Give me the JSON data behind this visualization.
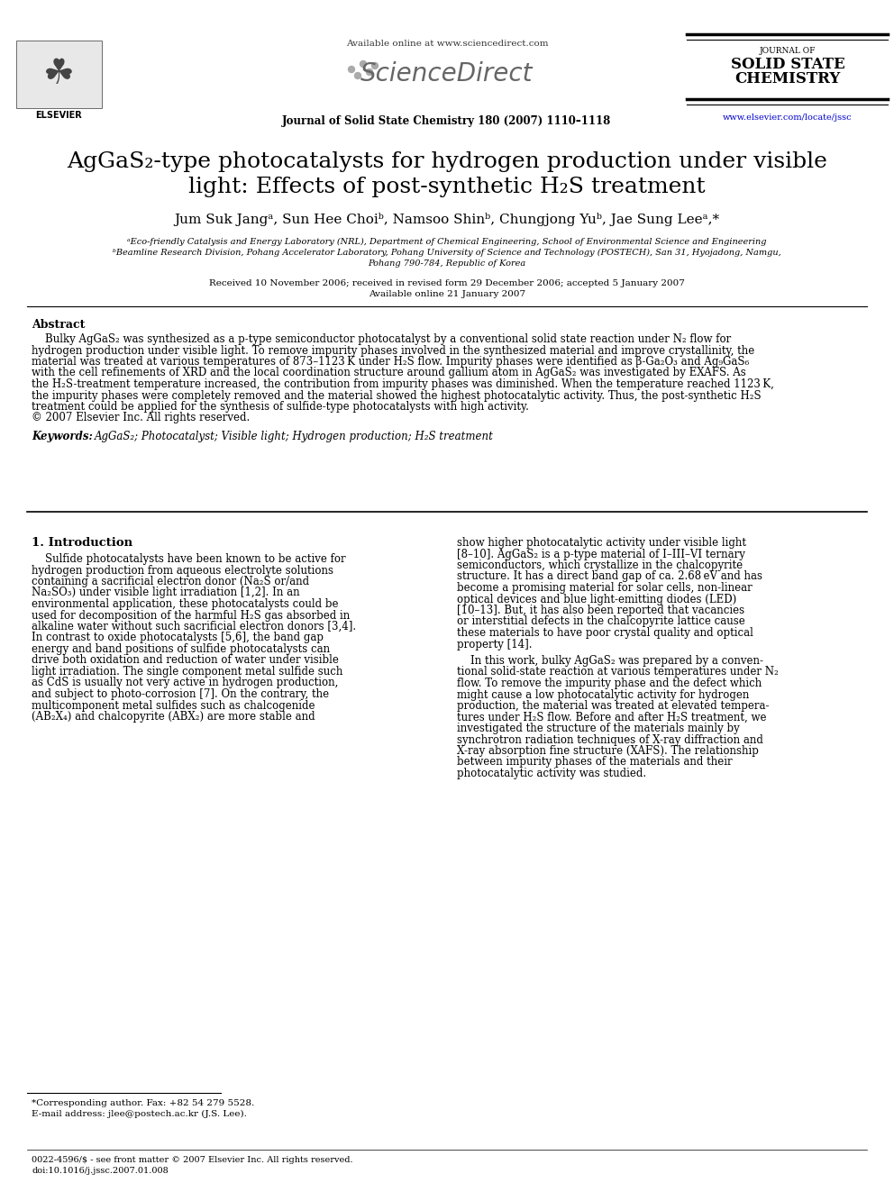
{
  "bg_color": "#ffffff",
  "available_online": "Available online at www.sciencedirect.com",
  "journal_name_top": "Journal of Solid State Chemistry 180 (2007) 1110–1118",
  "journal_label_small": "JOURNAL OF",
  "journal_label_big1": "SOLID STATE",
  "journal_label_big2": "CHEMISTRY",
  "journal_url": "www.elsevier.com/locate/jssc",
  "elsevier_label": "ELSEVIER",
  "title_line1": "AgGaS₂-type photocatalysts for hydrogen production under visible",
  "title_line2": "light: Effects of post-synthetic H₂S treatment",
  "authors": "Jum Suk Jangᵃ, Sun Hee Choiᵇ, Namsoo Shinᵇ, Chungjong Yuᵇ, Jae Sung Leeᵃ,*",
  "affil_a": "ᵃEco-friendly Catalysis and Energy Laboratory (NRL), Department of Chemical Engineering, School of Environmental Science and Engineering",
  "affil_b": "ᵇBeamline Research Division, Pohang Accelerator Laboratory, Pohang University of Science and Technology (POSTECH), San 31, Hyojadong, Namgu,",
  "affil_b2": "Pohang 790-784, Republic of Korea",
  "received": "Received 10 November 2006; received in revised form 29 December 2006; accepted 5 January 2007",
  "available": "Available online 21 January 2007",
  "abstract_title": "Abstract",
  "keywords_label": "Keywords: ",
  "keywords_text": "AgGaS₂; Photocatalyst; Visible light; Hydrogen production; H₂S treatment",
  "section1_title": "1. Introduction",
  "footnote_star": "*Corresponding author. Fax: +82 54 279 5528.",
  "footnote_email": "E-mail address: jlee@postech.ac.kr (J.S. Lee).",
  "footer_issn": "0022-4596/$ - see front matter © 2007 Elsevier Inc. All rights reserved.",
  "footer_doi": "doi:10.1016/j.jssc.2007.01.008",
  "link_color": "#0000cc",
  "title_fontsize": 18,
  "body_fontsize": 8.5,
  "abstract_lines": [
    "    Bulky AgGaS₂ was synthesized as a p-type semiconductor photocatalyst by a conventional solid state reaction under N₂ flow for",
    "hydrogen production under visible light. To remove impurity phases involved in the synthesized material and improve crystallinity, the",
    "material was treated at various temperatures of 873–1123 K under H₂S flow. Impurity phases were identified as β-Ga₂O₃ and Ag₉GaS₆",
    "with the cell refinements of XRD and the local coordination structure around gallium atom in AgGaS₂ was investigated by EXAFS. As",
    "the H₂S-treatment temperature increased, the contribution from impurity phases was diminished. When the temperature reached 1123 K,",
    "the impurity phases were completely removed and the material showed the highest photocatalytic activity. Thus, the post-synthetic H₂S",
    "treatment could be applied for the synthesis of sulfide-type photocatalysts with high activity.",
    "© 2007 Elsevier Inc. All rights reserved."
  ],
  "col1_lines": [
    "    Sulfide photocatalysts have been known to be active for",
    "hydrogen production from aqueous electrolyte solutions",
    "containing a sacrificial electron donor (Na₂S or/and",
    "Na₂SO₃) under visible light irradiation [1,2]. In an",
    "environmental application, these photocatalysts could be",
    "used for decomposition of the harmful H₂S gas absorbed in",
    "alkaline water without such sacrificial electron donors [3,4].",
    "In contrast to oxide photocatalysts [5,6], the band gap",
    "energy and band positions of sulfide photocatalysts can",
    "drive both oxidation and reduction of water under visible",
    "light irradiation. The single component metal sulfide such",
    "as CdS is usually not very active in hydrogen production,",
    "and subject to photo-corrosion [7]. On the contrary, the",
    "multicomponent metal sulfides such as chalcogenide",
    "(AB₂X₄) and chalcopyrite (ABX₂) are more stable and"
  ],
  "col2_lines_1": [
    "show higher photocatalytic activity under visible light",
    "[8–10]. AgGaS₂ is a p-type material of I–III–VI ternary",
    "semiconductors, which crystallize in the chalcopyrite",
    "structure. It has a direct band gap of ca. 2.68 eV and has",
    "become a promising material for solar cells, non-linear",
    "optical devices and blue light-emitting diodes (LED)",
    "[10–13]. But, it has also been reported that vacancies",
    "or interstitial defects in the chalcopyrite lattice cause",
    "these materials to have poor crystal quality and optical",
    "property [14]."
  ],
  "col2_lines_2": [
    "    In this work, bulky AgGaS₂ was prepared by a conven-",
    "tional solid-state reaction at various temperatures under N₂",
    "flow. To remove the impurity phase and the defect which",
    "might cause a low photocatalytic activity for hydrogen",
    "production, the material was treated at elevated tempera-",
    "tures under H₂S flow. Before and after H₂S treatment, we",
    "investigated the structure of the materials mainly by",
    "synchrotron radiation techniques of X-ray diffraction and",
    "X-ray absorption fine structure (XAFS). The relationship",
    "between impurity phases of the materials and their",
    "photocatalytic activity was studied."
  ]
}
